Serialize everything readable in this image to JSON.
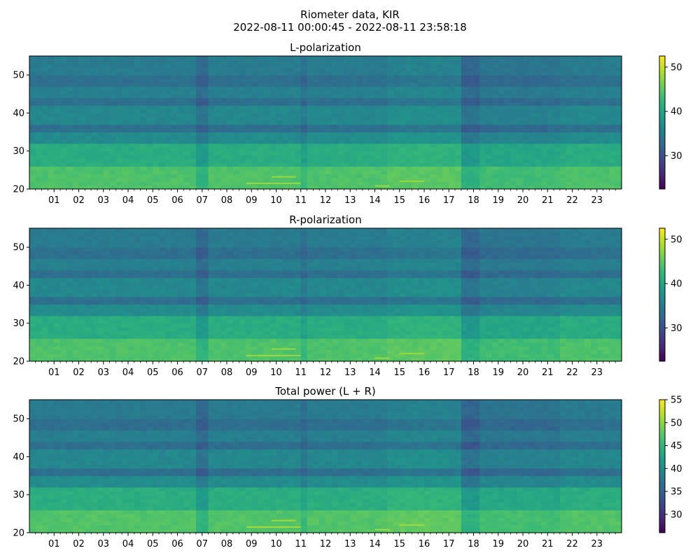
{
  "figure": {
    "title_line1": "Riometer data, KIR",
    "title_line2": "2022-08-11 00:00:45 - 2022-08-11 23:58:18"
  },
  "chart_data": [
    {
      "type": "heatmap",
      "title": "L-polarization",
      "x_ticks": [
        "01",
        "02",
        "03",
        "04",
        "05",
        "06",
        "07",
        "08",
        "09",
        "10",
        "11",
        "12",
        "13",
        "14",
        "15",
        "16",
        "17",
        "18",
        "19",
        "20",
        "21",
        "22",
        "23"
      ],
      "x_range_hours": [
        0,
        24
      ],
      "y_ticks": [
        20,
        30,
        40,
        50
      ],
      "ylim": [
        20,
        55
      ],
      "colorbar": {
        "range": [
          22.5,
          52.5
        ],
        "ticks": [
          30,
          40,
          50
        ],
        "colormap": "viridis"
      }
    },
    {
      "type": "heatmap",
      "title": "R-polarization",
      "x_ticks": [
        "01",
        "02",
        "03",
        "04",
        "05",
        "06",
        "07",
        "08",
        "09",
        "10",
        "11",
        "12",
        "13",
        "14",
        "15",
        "16",
        "17",
        "18",
        "19",
        "20",
        "21",
        "22",
        "23"
      ],
      "x_range_hours": [
        0,
        24
      ],
      "y_ticks": [
        20,
        30,
        40,
        50
      ],
      "ylim": [
        20,
        55
      ],
      "colorbar": {
        "range": [
          22.5,
          52.5
        ],
        "ticks": [
          30,
          40,
          50
        ],
        "colormap": "viridis"
      }
    },
    {
      "type": "heatmap",
      "title": "Total power (L + R)",
      "x_ticks": [
        "01",
        "02",
        "03",
        "04",
        "05",
        "06",
        "07",
        "08",
        "09",
        "10",
        "11",
        "12",
        "13",
        "14",
        "15",
        "16",
        "17",
        "18",
        "19",
        "20",
        "21",
        "22",
        "23"
      ],
      "x_range_hours": [
        0,
        24
      ],
      "y_ticks": [
        20,
        30,
        40,
        50
      ],
      "ylim": [
        20,
        55
      ],
      "colorbar": {
        "range": [
          26,
          55
        ],
        "ticks": [
          30,
          35,
          40,
          45,
          50,
          55
        ],
        "colormap": "viridis"
      }
    }
  ]
}
